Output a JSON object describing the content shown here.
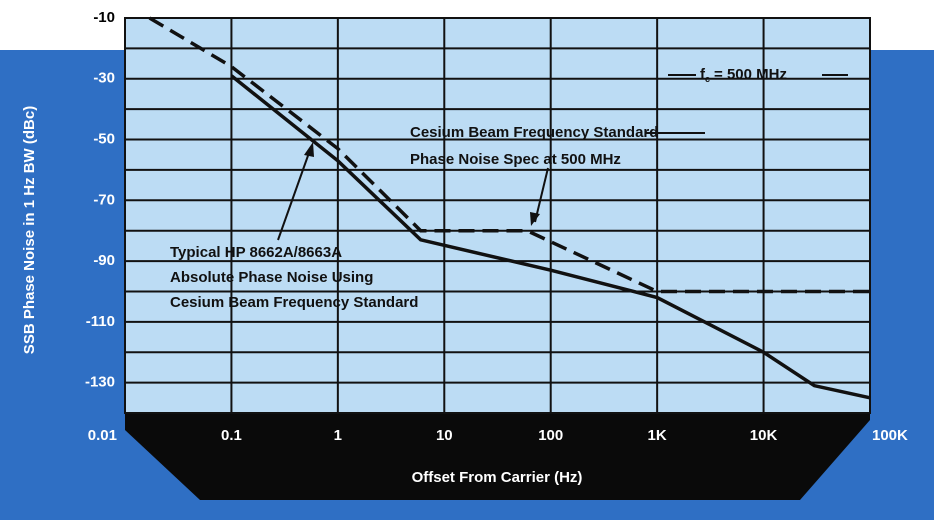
{
  "chart_data": {
    "type": "line",
    "y_label": "SSB Phase Noise in 1 Hz BW (dBc)",
    "x_label": "Offset From Carrier (Hz)",
    "log_x": true,
    "xlim": [
      0.01,
      100000
    ],
    "xticks": [
      0.01,
      0.1,
      1,
      10,
      100,
      {
        "value": 1000,
        "label": "1K"
      },
      {
        "value": 10000,
        "label": "10K"
      },
      {
        "value": 100000,
        "label": "100K"
      }
    ],
    "ylim": [
      -140,
      -10
    ],
    "yticks": [
      -10,
      -30,
      -50,
      -70,
      -90,
      -110,
      -130
    ],
    "minor_yticks": [
      -20,
      -40,
      -60,
      -80,
      -100,
      -120
    ],
    "grid": true,
    "series": [
      {
        "color": "#111111",
        "style": "solid",
        "x": [
          0.1,
          1,
          6,
          100,
          1000,
          10000,
          30000,
          100000
        ],
        "values": [
          -29,
          -57,
          -83,
          -93,
          -102,
          -120,
          -131,
          -135
        ]
      },
      {
        "color": "#111111",
        "style": "dashed",
        "x": [
          0.017,
          0.1,
          1,
          6,
          60,
          1000,
          100000
        ],
        "values": [
          -10,
          -26,
          -53,
          -80,
          -80,
          -100,
          -100
        ]
      }
    ],
    "annotations": {
      "fc": [
        "f",
        "c",
        "= 500 MHz"
      ],
      "cesium": [
        "Cesium Beam Frequency Standard",
        "Phase Noise Spec at 500 MHz"
      ],
      "typical": [
        "Typical HP 8662A/8663A",
        "Absolute Phase Noise Using",
        "Cesium Beam Frequency Standard"
      ]
    }
  }
}
